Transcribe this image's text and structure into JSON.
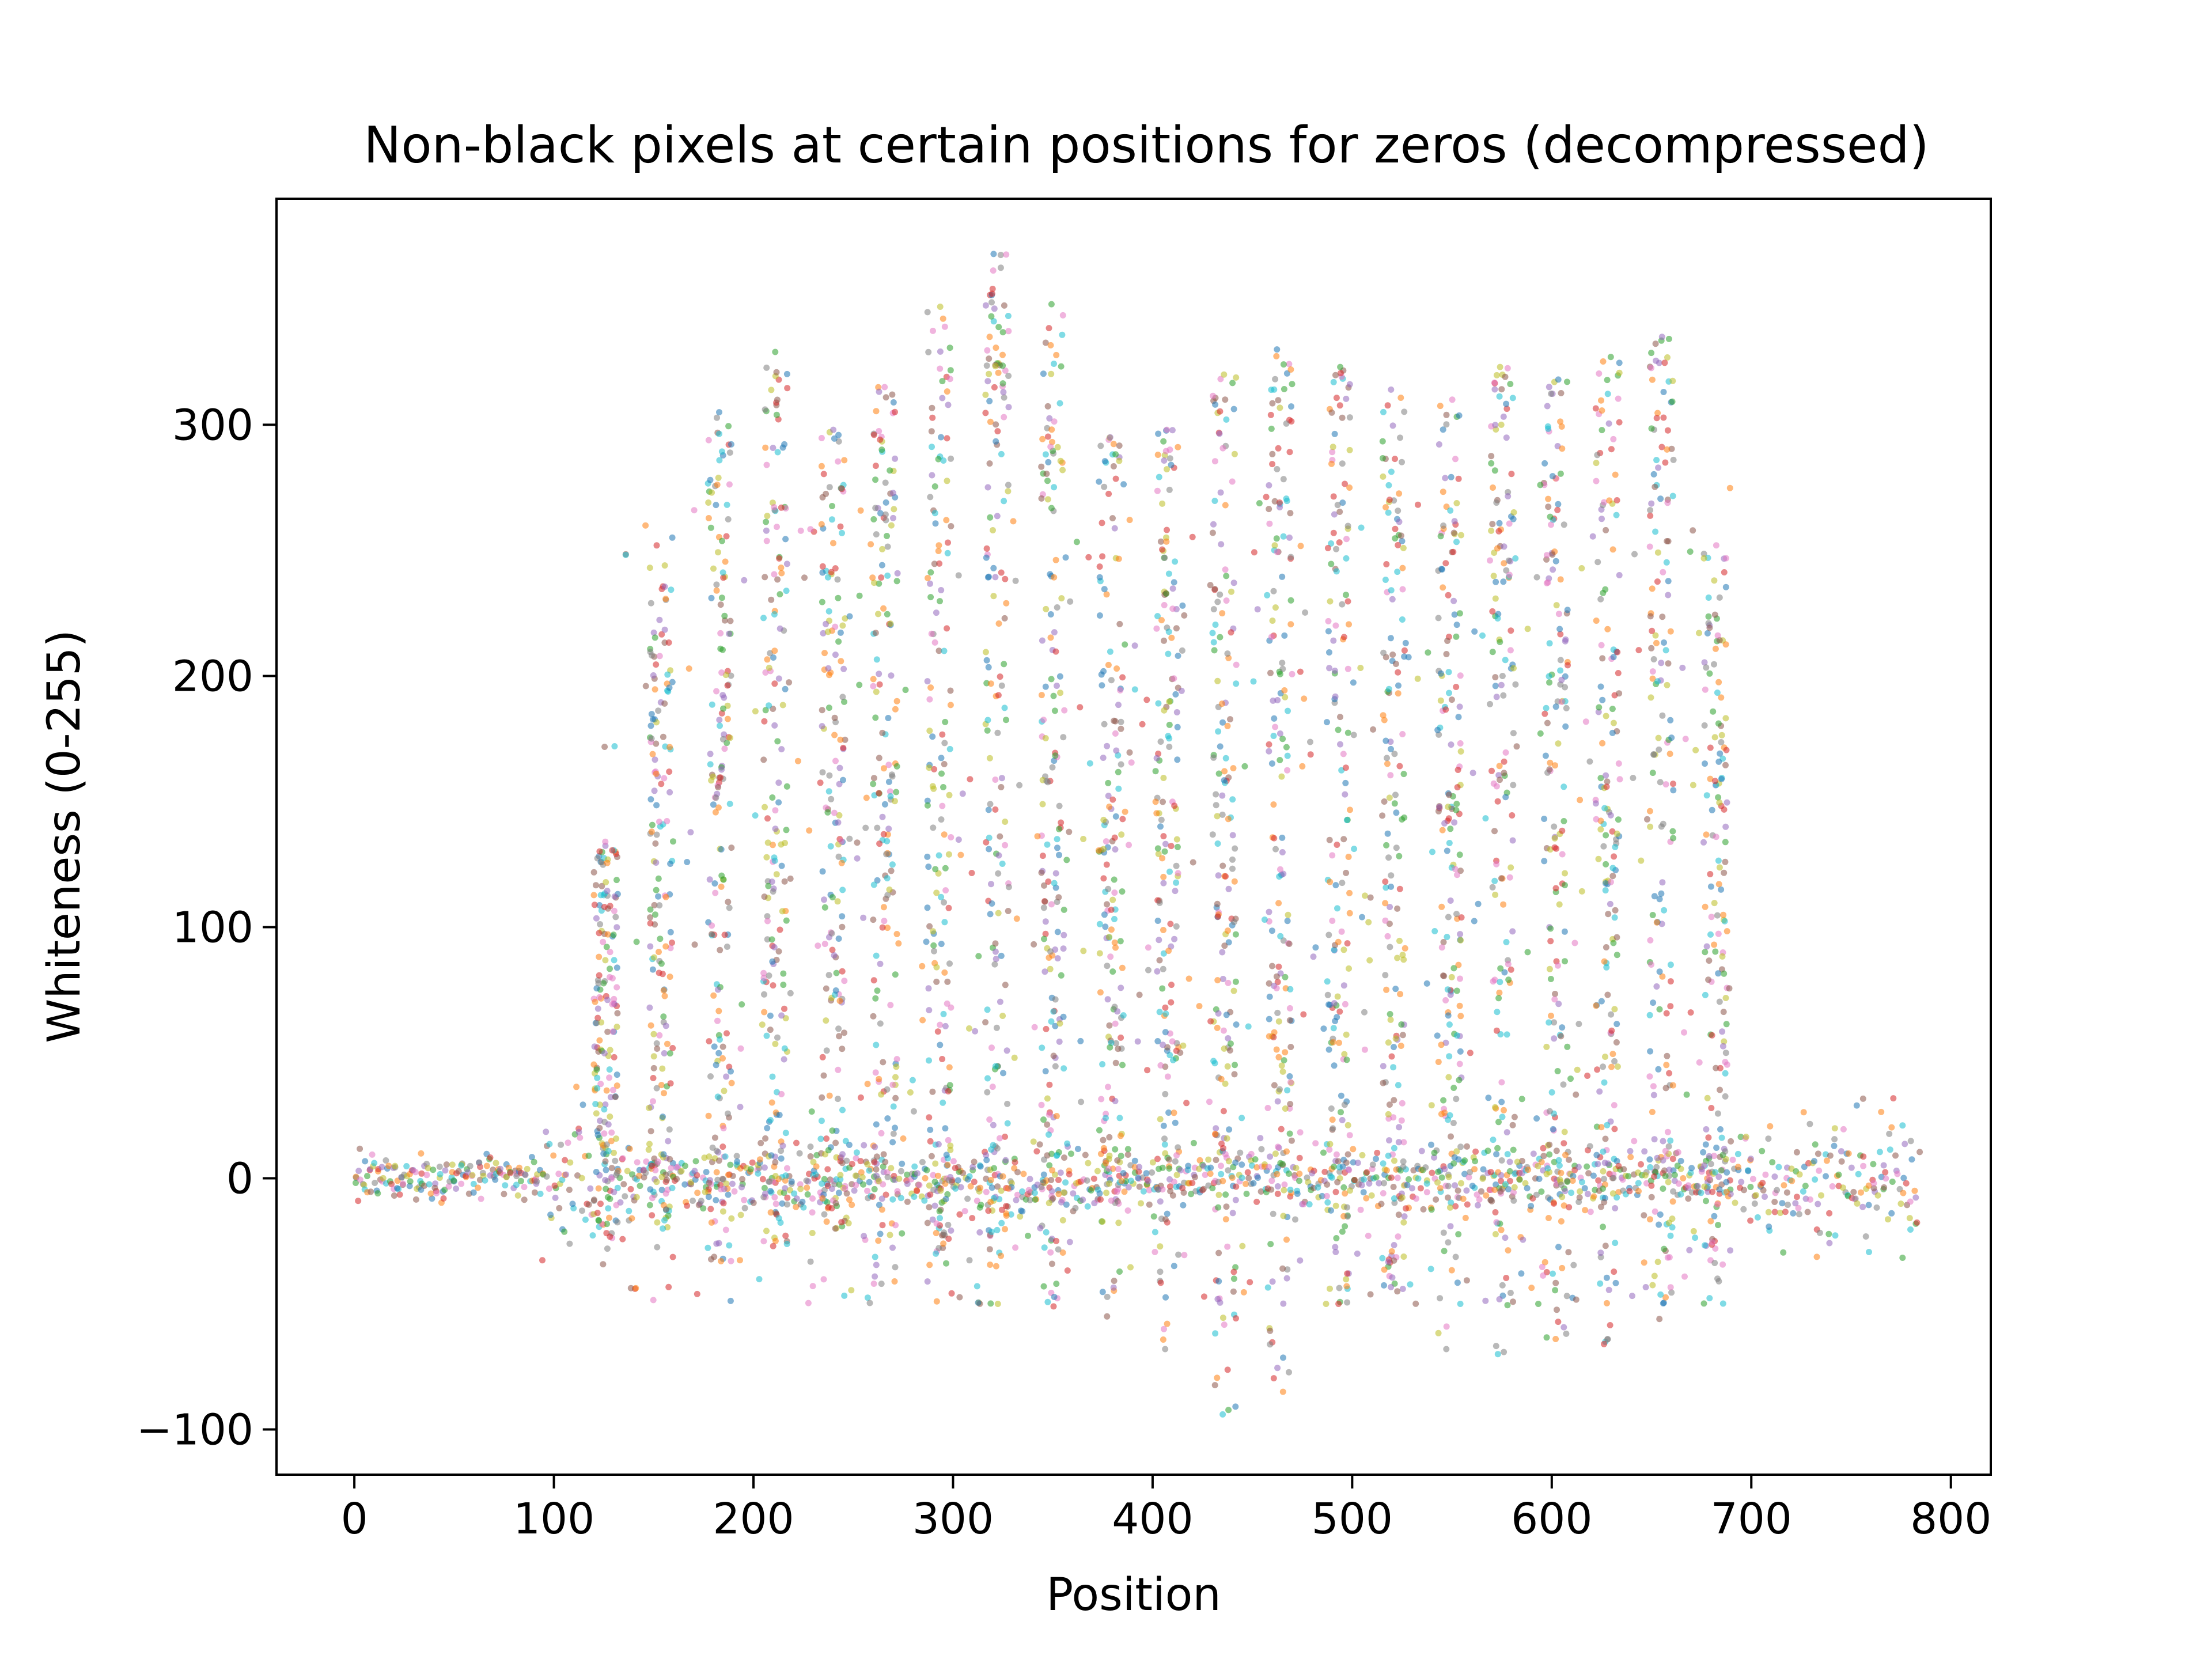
{
  "chart_data": {
    "type": "scatter",
    "title": "Non-black pixels at certain positions for zeros (decompressed)",
    "xlabel": "Position",
    "ylabel": "Whiteness (0-255)",
    "xlim": [
      -39,
      820
    ],
    "ylim": [
      -118,
      390
    ],
    "xticks": [
      0,
      100,
      200,
      300,
      400,
      500,
      600,
      700,
      800
    ],
    "yticks": [
      -100,
      0,
      100,
      200,
      300
    ],
    "grid": false,
    "legend": "none",
    "marker_alpha": 0.55,
    "colors": [
      "#1f77b4",
      "#ff7f0e",
      "#2ca02c",
      "#d62728",
      "#9467bd",
      "#8c564b",
      "#e377c2",
      "#7f7f7f",
      "#bcbd22",
      "#17becf"
    ],
    "columns": [
      {
        "x": 126,
        "max": 134,
        "min": -28
      },
      {
        "x": 154,
        "max": 244,
        "min": -20
      },
      {
        "x": 183,
        "max": 305,
        "min": -33
      },
      {
        "x": 211,
        "max": 329,
        "min": -27
      },
      {
        "x": 240,
        "max": 298,
        "min": -20
      },
      {
        "x": 266,
        "max": 315,
        "min": -42
      },
      {
        "x": 293,
        "max": 347,
        "min": -30
      },
      {
        "x": 322,
        "max": 368,
        "min": -35
      },
      {
        "x": 350,
        "max": 348,
        "min": -51
      },
      {
        "x": 379,
        "max": 295,
        "min": -55
      },
      {
        "x": 407,
        "max": 298,
        "min": -68
      },
      {
        "x": 436,
        "max": 320,
        "min": -94
      },
      {
        "x": 464,
        "max": 330,
        "min": -85
      },
      {
        "x": 493,
        "max": 323,
        "min": -50
      },
      {
        "x": 521,
        "max": 314,
        "min": -45
      },
      {
        "x": 549,
        "max": 310,
        "min": -68
      },
      {
        "x": 575,
        "max": 323,
        "min": -70
      },
      {
        "x": 602,
        "max": 318,
        "min": -64
      },
      {
        "x": 628,
        "max": 327,
        "min": -66
      },
      {
        "x": 655,
        "max": 335,
        "min": -56
      },
      {
        "x": 682,
        "max": 252,
        "min": -41
      }
    ],
    "flat_ranges": [
      {
        "from": 0,
        "to": 95,
        "spread": 6
      },
      {
        "from": 95,
        "to": 125,
        "spread": 20
      },
      {
        "from": 690,
        "to": 784,
        "spread": 18
      }
    ]
  }
}
